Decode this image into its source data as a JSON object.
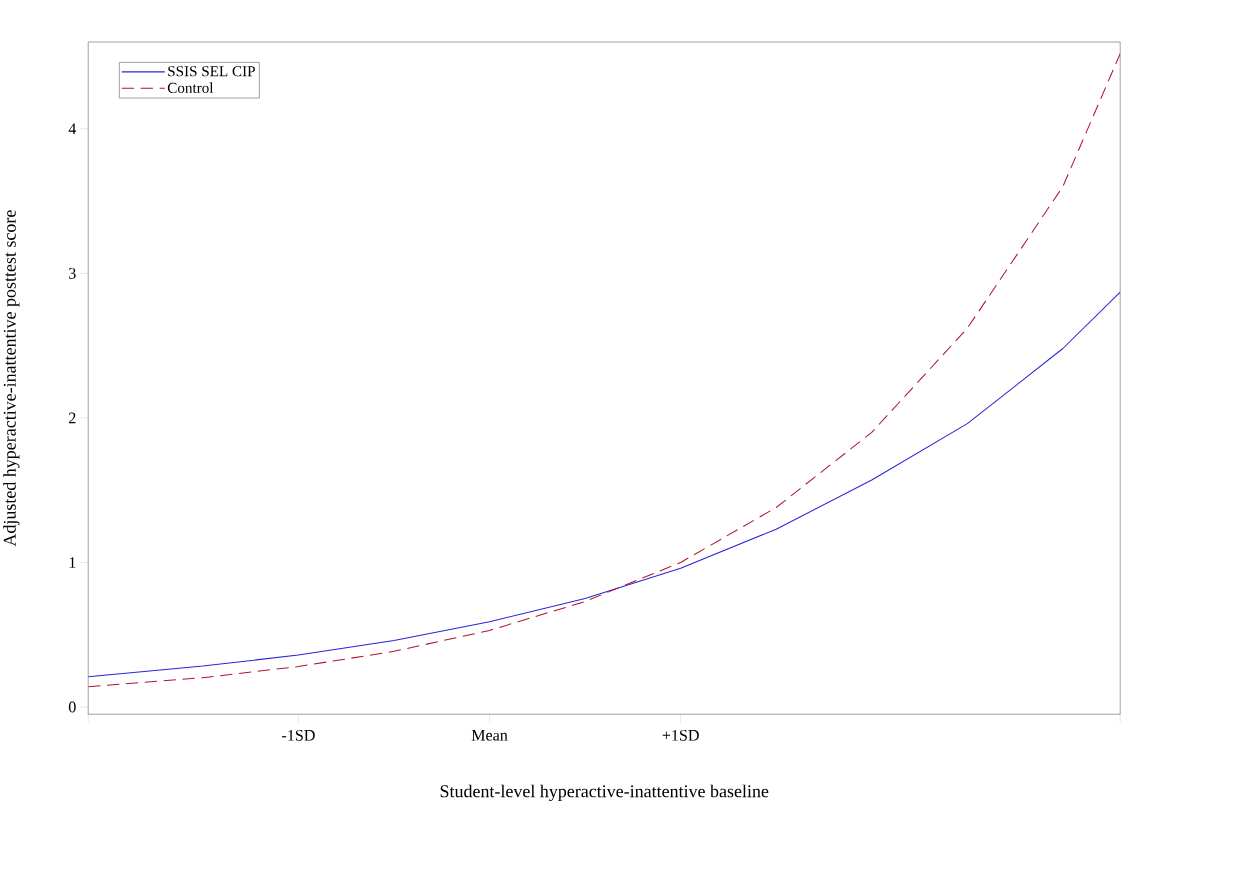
{
  "chart_data": {
    "type": "line",
    "xlabel": "Student-level hyperactive-inattentive baseline",
    "ylabel": "Adjusted hyperactive-inattentive posttest score",
    "x": [
      -2.1,
      -1.5,
      -1,
      -0.5,
      0,
      0.5,
      1,
      1.5,
      2,
      2.5,
      3,
      3.3
    ],
    "series": [
      {
        "name": "SSIS SEL CIP",
        "color": "#2a24d9",
        "line_style": "solid",
        "values": [
          0.21,
          0.283,
          0.36,
          0.46,
          0.59,
          0.75,
          0.96,
          1.23,
          1.57,
          1.96,
          2.48,
          2.87
        ]
      },
      {
        "name": "Control",
        "color": "#b0152d",
        "line_style": "dashed",
        "values": [
          0.14,
          0.203,
          0.28,
          0.385,
          0.53,
          0.73,
          1.0,
          1.38,
          1.9,
          2.62,
          3.6,
          4.52
        ]
      }
    ],
    "xlim": [
      -2.1,
      3.3
    ],
    "ylim": [
      -0.05,
      4.6
    ],
    "xticks": [
      {
        "value": -2.1,
        "label": null
      },
      {
        "value": -1,
        "label": "-1SD"
      },
      {
        "value": 0,
        "label": "Mean"
      },
      {
        "value": 1,
        "label": "+1SD"
      },
      {
        "value": 3.3,
        "label": null
      }
    ],
    "yticks": [
      0,
      1,
      2,
      3,
      4
    ],
    "legend": "top left",
    "marker": "none"
  }
}
